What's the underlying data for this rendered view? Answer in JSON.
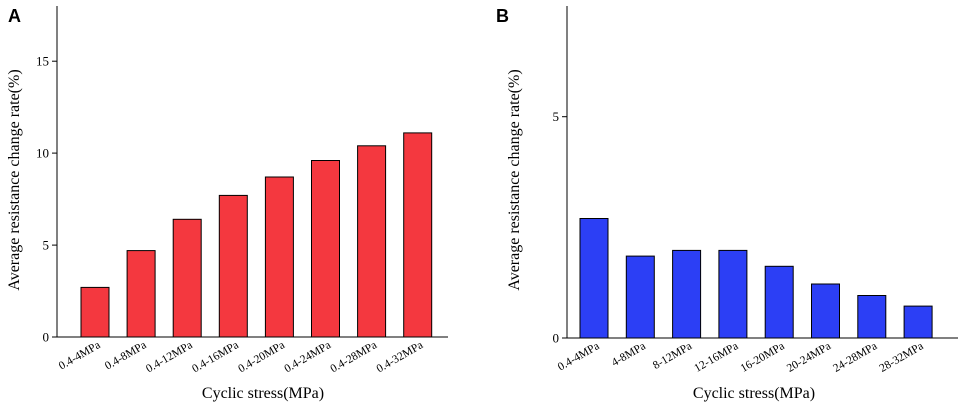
{
  "chart_data": [
    {
      "panel": "A",
      "type": "bar",
      "xlabel": "Cyclic stress(MPa)",
      "ylabel": "Average resistance change rate(%)",
      "ylim": [
        0,
        18
      ],
      "yticks": [
        0,
        5,
        10,
        15
      ],
      "bar_color": "#f4383f",
      "categories": [
        "0.4-4MPa",
        "0.4-8MPa",
        "0.4-12MPa",
        "0.4-16MPa",
        "0.4-20MPa",
        "0.4-24MPa",
        "0.4-28MPa",
        "0.4-32MPa"
      ],
      "values": [
        2.7,
        4.7,
        6.4,
        7.7,
        8.7,
        9.6,
        10.4,
        11.1
      ]
    },
    {
      "panel": "B",
      "type": "bar",
      "xlabel": "Cyclic stress(MPa)",
      "ylabel": "Average resistance change rate(%)",
      "ylim": [
        0,
        7.5
      ],
      "yticks": [
        0,
        5
      ],
      "bar_color": "#2c3ff5",
      "categories": [
        "0.4-4MPa",
        "4-8MPa",
        "8-12MPa",
        "12-16MPa",
        "16-20MPa",
        "20-24MPa",
        "24-28MPa",
        "28-32MPa"
      ],
      "values": [
        2.7,
        1.85,
        1.98,
        1.98,
        1.62,
        1.22,
        0.96,
        0.72
      ]
    }
  ]
}
